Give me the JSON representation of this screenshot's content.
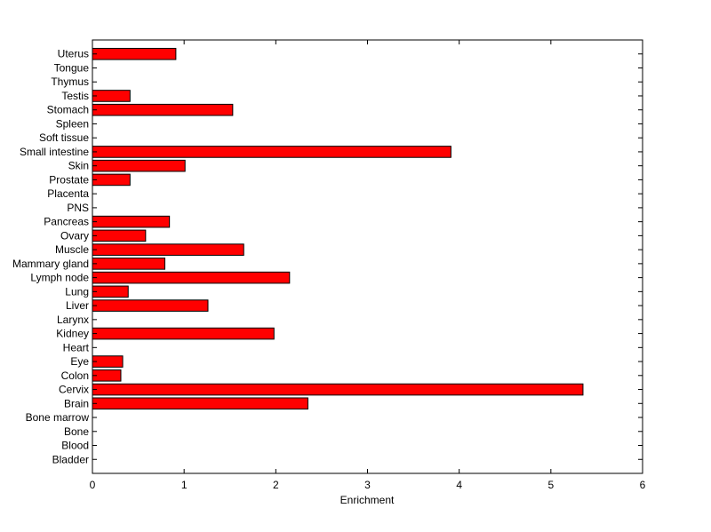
{
  "chart_data": {
    "type": "bar",
    "orientation": "horizontal",
    "title": "",
    "xlabel": "Enrichment",
    "ylabel": "",
    "xlim": [
      0,
      6
    ],
    "xticks": [
      "0",
      "1",
      "2",
      "3",
      "4",
      "5",
      "6"
    ],
    "grid": false,
    "legend": "none",
    "bar_color": "#ff0000",
    "bar_edge_color": "#000000",
    "categories": [
      "Bladder",
      "Blood",
      "Bone",
      "Bone marrow",
      "Brain",
      "Cervix",
      "Colon",
      "Eye",
      "Heart",
      "Kidney",
      "Larynx",
      "Liver",
      "Lung",
      "Lymph node",
      "Mammary gland",
      "Muscle",
      "Ovary",
      "Pancreas",
      "PNS",
      "Placenta",
      "Prostate",
      "Skin",
      "Small intestine",
      "Soft tissue",
      "Spleen",
      "Stomach",
      "Testis",
      "Thymus",
      "Tongue",
      "Uterus"
    ],
    "values": [
      0,
      0,
      0,
      0,
      2.35,
      5.35,
      0.31,
      0.33,
      0,
      1.98,
      0,
      1.26,
      0.39,
      2.15,
      0.79,
      1.65,
      0.58,
      0.84,
      0,
      0,
      0.41,
      1.01,
      3.91,
      0,
      0,
      1.53,
      0.41,
      0,
      0,
      0.91
    ]
  }
}
